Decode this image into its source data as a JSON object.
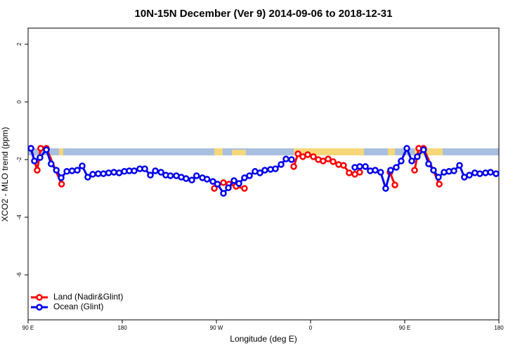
{
  "chart_data": {
    "type": "line",
    "title": "10N-15N December (Ver 9)   2014-09-06 to 2018-12-31",
    "x_label": "Longitude (deg E)",
    "y_label": "XCO2 - MLO trend (ppm)",
    "xlim": [
      90,
      540
    ],
    "ylim": [
      -7.56,
      2.56
    ],
    "xticks": [
      {
        "value": 90,
        "label": "90 E"
      },
      180,
      {
        "value": 270,
        "label": "90 W"
      },
      {
        "value": 360,
        "label": "0"
      },
      {
        "value": 450,
        "label": "90 E"
      },
      {
        "value": 540,
        "label": "180"
      }
    ],
    "yticks": [
      2,
      0,
      -2,
      -4,
      -6
    ],
    "legend": "bottom-left",
    "series": [
      {
        "name": "Land (Nadir&Glint)",
        "color": "#ff0000",
        "x": [
          92.7,
          98.7,
          102,
          107.5,
          122,
          null,
          268,
          276.7,
          282,
          288.8,
          296.8,
          null,
          343.9,
          348,
          352.6,
          357.3,
          362.7,
          367.4,
          372,
          376.8,
          381.5,
          386.8,
          391.5,
          396.9,
          402.3,
          407,
          null,
          435.9,
          440.6,
          null,
          459.4,
          463.4,
          468,
          483
        ],
        "values": [
          -1.61,
          -2.37,
          -1.61,
          -1.61,
          -2.85,
          null,
          -3.0,
          -2.8,
          -2.85,
          -2.93,
          -3.0,
          null,
          -2.24,
          -1.8,
          -1.9,
          -1.83,
          -1.9,
          -2.0,
          -2.05,
          -1.98,
          -2.07,
          -2.17,
          -2.2,
          -2.46,
          -2.51,
          -2.44,
          null,
          -2.44,
          -2.88,
          null,
          -2.37,
          -1.61,
          -1.61,
          -2.85
        ]
      },
      {
        "name": "Ocean (Glint)",
        "color": "#0000ee",
        "x": [
          92.7,
          96,
          101.4,
          107.5,
          112,
          117,
          121.6,
          127,
          132,
          137,
          141.7,
          147,
          151.8,
          157,
          162,
          167,
          172,
          177,
          182,
          186.7,
          191.4,
          196.8,
          201.5,
          206.9,
          211.6,
          217,
          221.6,
          226,
          231.7,
          236.4,
          241,
          246.5,
          251,
          256.6,
          261,
          266.6,
          271,
          276.7,
          281.4,
          286.8,
          291.5,
          296.8,
          301.6,
          306.9,
          311.6,
          316.3,
          321.7,
          326.4,
          331.8,
          336.5,
          341.8,
          null,
          402.3,
          407,
          412.4,
          417,
          421.8,
          427,
          431.8,
          436.5,
          441.9,
          446.6,
          452,
          456.7,
          462,
          468,
          472.8,
          477.5,
          482.2,
          487.6,
          492.3,
          497,
          502.4,
          507,
          511.8,
          517,
          521.8,
          527.2,
          532,
          537.3
        ],
        "values": [
          -1.61,
          -2.05,
          -1.93,
          -1.66,
          -2.15,
          -2.37,
          -2.63,
          -2.41,
          -2.39,
          -2.37,
          -2.22,
          -2.61,
          -2.51,
          -2.49,
          -2.49,
          -2.46,
          -2.44,
          -2.46,
          -2.41,
          -2.39,
          -2.39,
          -2.32,
          -2.32,
          -2.54,
          -2.39,
          -2.44,
          -2.54,
          -2.56,
          -2.56,
          -2.61,
          -2.66,
          -2.71,
          -2.56,
          -2.63,
          -2.68,
          -2.76,
          -2.85,
          -3.17,
          -2.98,
          -2.73,
          -2.83,
          -2.63,
          -2.56,
          -2.41,
          -2.46,
          -2.37,
          -2.34,
          -2.32,
          -2.17,
          -1.98,
          -2.0,
          null,
          -2.27,
          -2.24,
          -2.24,
          -2.39,
          -2.37,
          -2.44,
          -3.0,
          -2.37,
          -2.27,
          -2.05,
          -1.61,
          -2.05,
          -1.9,
          -1.66,
          -2.15,
          -2.37,
          -2.61,
          -2.44,
          -2.41,
          -2.39,
          -2.2,
          -2.61,
          -2.54,
          -2.46,
          -2.49,
          -2.46,
          -2.44,
          -2.49
        ]
      }
    ]
  }
}
